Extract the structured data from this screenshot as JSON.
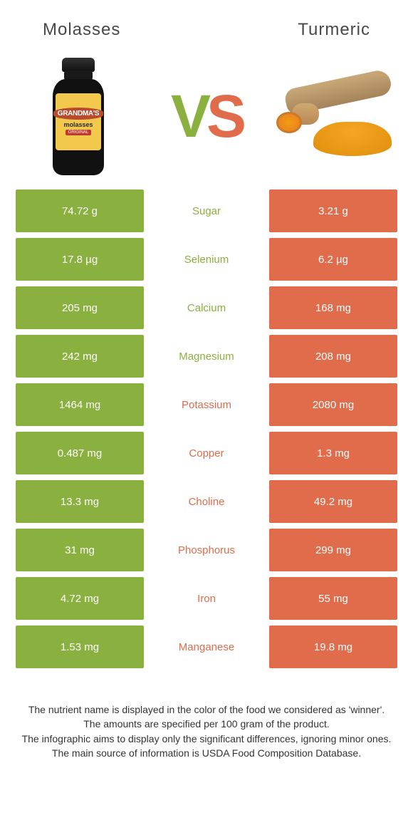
{
  "colors": {
    "green": "#8ab13f",
    "orange": "#e06c4c",
    "text": "#484848",
    "white": "#ffffff"
  },
  "heading": {
    "left": "Molasses",
    "right": "Turmeric"
  },
  "jar": {
    "brand": "GRANDMA'S",
    "word": "molasses",
    "tag": "ORIGINAL"
  },
  "vs": {
    "v": "V",
    "s": "S"
  },
  "nutrients": [
    {
      "label": "Sugar",
      "left": "74.72 g",
      "right": "3.21 g",
      "winner": "left"
    },
    {
      "label": "Selenium",
      "left": "17.8 µg",
      "right": "6.2 µg",
      "winner": "left"
    },
    {
      "label": "Calcium",
      "left": "205 mg",
      "right": "168 mg",
      "winner": "left"
    },
    {
      "label": "Magnesium",
      "left": "242 mg",
      "right": "208 mg",
      "winner": "left"
    },
    {
      "label": "Potassium",
      "left": "1464 mg",
      "right": "2080 mg",
      "winner": "right"
    },
    {
      "label": "Copper",
      "left": "0.487 mg",
      "right": "1.3 mg",
      "winner": "right"
    },
    {
      "label": "Choline",
      "left": "13.3 mg",
      "right": "49.2 mg",
      "winner": "right"
    },
    {
      "label": "Phosphorus",
      "left": "31 mg",
      "right": "299 mg",
      "winner": "right"
    },
    {
      "label": "Iron",
      "left": "4.72 mg",
      "right": "55 mg",
      "winner": "right"
    },
    {
      "label": "Manganese",
      "left": "1.53 mg",
      "right": "19.8 mg",
      "winner": "right"
    }
  ],
  "footer": {
    "l1": "The nutrient name is displayed in the color of the food we considered as 'winner'.",
    "l2": "The amounts are specified per 100 gram of the product.",
    "l3": "The infographic aims to display only the significant differences, ignoring minor ones.",
    "l4": "The main source of information is USDA Food Composition Database."
  }
}
